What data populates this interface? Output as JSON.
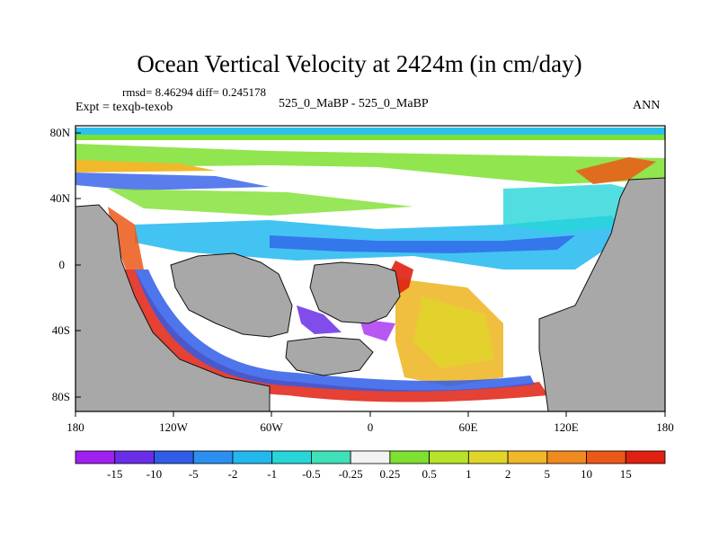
{
  "header": {
    "title": "Ocean Vertical Velocity at 2424m (in cm/day)",
    "stats": "rmsd= 8.46294 diff= 0.245178",
    "experiment": "Expt = texqb-texob",
    "case": "525_0_MaBP - 525_0_MaBP",
    "season": "ANN"
  },
  "map": {
    "lat_ticks": [
      "80N",
      "40N",
      "0",
      "40S",
      "80S"
    ],
    "lon_ticks": [
      "180",
      "120W",
      "60W",
      "0",
      "60E",
      "120E",
      "180"
    ],
    "land_color": "#a8a8a8",
    "ocean_background": "#ffffff"
  },
  "colorbar": {
    "colors": [
      "#a020f0",
      "#6a2ee8",
      "#2f5de8",
      "#2b8ff0",
      "#22b8ee",
      "#27d6d8",
      "#40e0b8",
      "#f2f2f2",
      "#7ee030",
      "#b8e22a",
      "#e0d62a",
      "#f0b82a",
      "#f08a20",
      "#ec5818",
      "#e02010"
    ],
    "labels": [
      "-15",
      "-10",
      "-5",
      "-2",
      "-1",
      "-0.5",
      "-0.25",
      "0.25",
      "0.5",
      "1",
      "2",
      "5",
      "10",
      "15"
    ]
  }
}
